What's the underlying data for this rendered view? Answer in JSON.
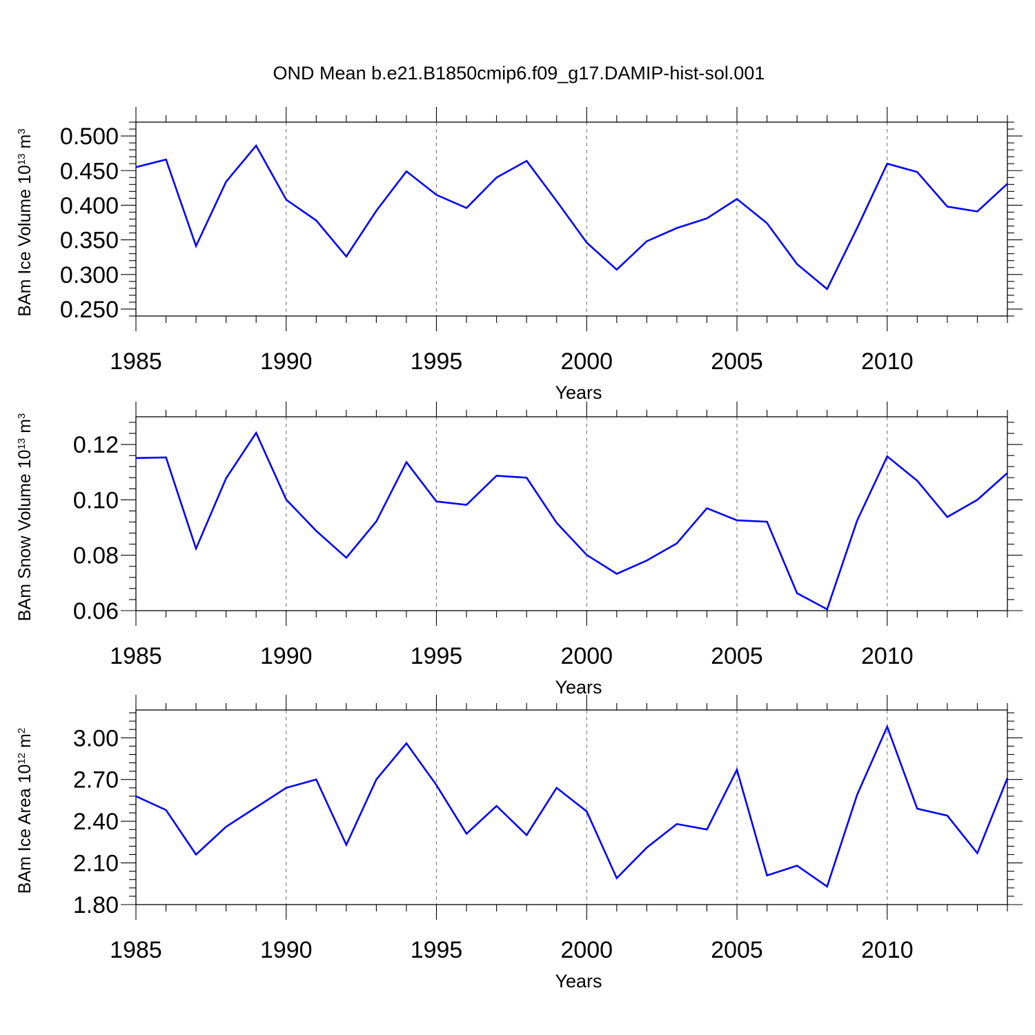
{
  "chart_data": {
    "type": "line",
    "title": "OND Mean b.e21.B1850cmip6.f09_g17.DAMIP-hist-sol.001",
    "series_color": "#0000ff",
    "panels": [
      {
        "id": "ice-volume",
        "ylabel": {
          "main": "BAm Ice Volume 10",
          "exp": "13",
          "unit": " m",
          "unit_exp": "3"
        },
        "xlabel": "Years",
        "xlim": [
          1985,
          2014
        ],
        "ylim": [
          0.24,
          0.52
        ],
        "xticks": [
          "1985",
          "1990",
          "1995",
          "2000",
          "2005",
          "2010"
        ],
        "yticks": [
          "0.250",
          "0.300",
          "0.350",
          "0.400",
          "0.450",
          "0.500"
        ],
        "x": [
          1985,
          1986,
          1987,
          1988,
          1989,
          1990,
          1991,
          1992,
          1993,
          1994,
          1995,
          1996,
          1997,
          1998,
          1999,
          2000,
          2001,
          2002,
          2003,
          2004,
          2005,
          2006,
          2007,
          2008,
          2009,
          2010,
          2011,
          2012,
          2013,
          2014
        ],
        "values": [
          0.455,
          0.466,
          0.341,
          0.434,
          0.486,
          0.408,
          0.378,
          0.326,
          0.392,
          0.449,
          0.415,
          0.396,
          0.44,
          0.464,
          0.406,
          0.346,
          0.307,
          0.348,
          0.367,
          0.381,
          0.409,
          0.374,
          0.315,
          0.279,
          0.367,
          0.46,
          0.448,
          0.398,
          0.391,
          0.431
        ]
      },
      {
        "id": "snow-volume",
        "ylabel": {
          "main": "BAm Snow Volume 10",
          "exp": "13",
          "unit": " m",
          "unit_exp": "3"
        },
        "xlabel": "Years",
        "xlim": [
          1985,
          2014
        ],
        "ylim": [
          0.06,
          0.13
        ],
        "xticks": [
          "1985",
          "1990",
          "1995",
          "2000",
          "2005",
          "2010"
        ],
        "yticks": [
          "0.06",
          "0.08",
          "0.10",
          "0.12"
        ],
        "x": [
          1985,
          1986,
          1987,
          1988,
          1989,
          1990,
          1991,
          1992,
          1993,
          1994,
          1995,
          1996,
          1997,
          1998,
          1999,
          2000,
          2001,
          2002,
          2003,
          2004,
          2005,
          2006,
          2007,
          2008,
          2009,
          2010,
          2011,
          2012,
          2013,
          2014
        ],
        "values": [
          0.1151,
          0.1153,
          0.0824,
          0.1078,
          0.1242,
          0.1001,
          0.0888,
          0.0791,
          0.0922,
          0.1136,
          0.0994,
          0.0982,
          0.1087,
          0.108,
          0.0917,
          0.0801,
          0.0733,
          0.0781,
          0.0843,
          0.097,
          0.0926,
          0.0921,
          0.0663,
          0.0605,
          0.0925,
          0.1157,
          0.1069,
          0.0938,
          0.1,
          0.1097
        ]
      },
      {
        "id": "ice-area",
        "ylabel": {
          "main": "BAm Ice Area 10",
          "exp": "12",
          "unit": " m",
          "unit_exp": "2"
        },
        "xlabel": "Years",
        "xlim": [
          1985,
          2014
        ],
        "ylim": [
          1.8,
          3.2
        ],
        "xticks": [
          "1985",
          "1990",
          "1995",
          "2000",
          "2005",
          "2010"
        ],
        "yticks": [
          "1.80",
          "2.10",
          "2.40",
          "2.70",
          "3.00"
        ],
        "x": [
          1985,
          1986,
          1987,
          1988,
          1989,
          1990,
          1991,
          1992,
          1993,
          1994,
          1995,
          1996,
          1997,
          1998,
          1999,
          2000,
          2001,
          2002,
          2003,
          2004,
          2005,
          2006,
          2007,
          2008,
          2009,
          2010,
          2011,
          2012,
          2013,
          2014
        ],
        "values": [
          2.58,
          2.48,
          2.16,
          2.36,
          2.5,
          2.64,
          2.7,
          2.23,
          2.7,
          2.96,
          2.66,
          2.31,
          2.51,
          2.3,
          2.64,
          2.47,
          1.99,
          2.21,
          2.38,
          2.34,
          2.77,
          2.01,
          2.08,
          1.93,
          2.59,
          3.08,
          2.49,
          2.44,
          2.17,
          2.71
        ]
      }
    ]
  }
}
